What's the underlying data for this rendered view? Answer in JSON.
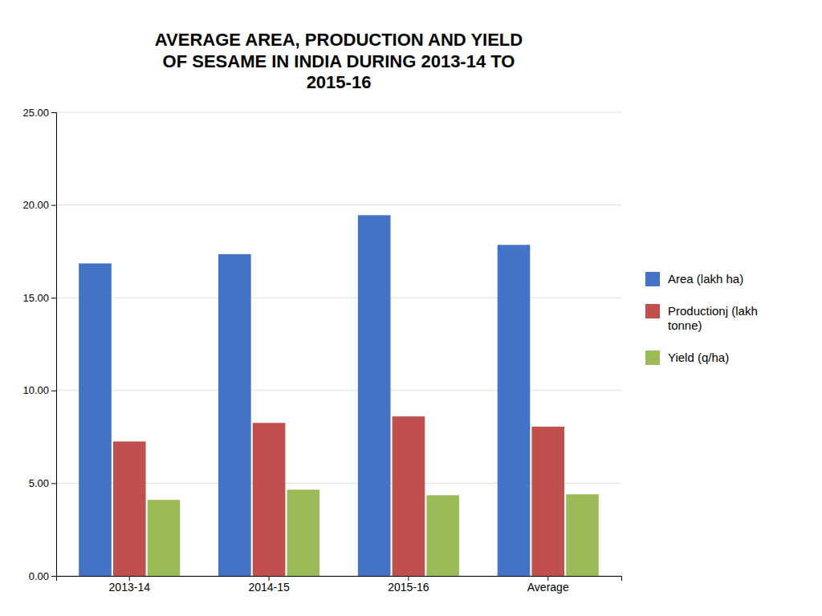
{
  "chart_data": {
    "type": "bar",
    "title": "AVERAGE AREA, PRODUCTION AND YIELD\nOF SESAME IN INDIA DURING 2013-14 TO\n2015-16",
    "categories": [
      "2013-14",
      "2014-15",
      "2015-16",
      "Average"
    ],
    "series": [
      {
        "name": "Area (lakh ha)",
        "color": "#4472C4",
        "values": [
          16.85,
          17.35,
          19.45,
          17.85
        ]
      },
      {
        "name": "Productionj (lakh\ntonne)",
        "color": "#C0504D",
        "values": [
          7.25,
          8.25,
          8.6,
          8.05
        ]
      },
      {
        "name": "Yield (q/ha)",
        "color": "#9BBB59",
        "values": [
          4.1,
          4.65,
          4.35,
          4.4
        ]
      }
    ],
    "ylim": [
      0,
      25
    ],
    "yticks": [
      {
        "value": 0,
        "label": "0.00"
      },
      {
        "value": 5,
        "label": "5.00"
      },
      {
        "value": 10,
        "label": "10.00"
      },
      {
        "value": 15,
        "label": "15.00"
      },
      {
        "value": 20,
        "label": "20.00"
      },
      {
        "value": 25,
        "label": "25.00"
      }
    ],
    "grid": true,
    "legend": "right"
  }
}
